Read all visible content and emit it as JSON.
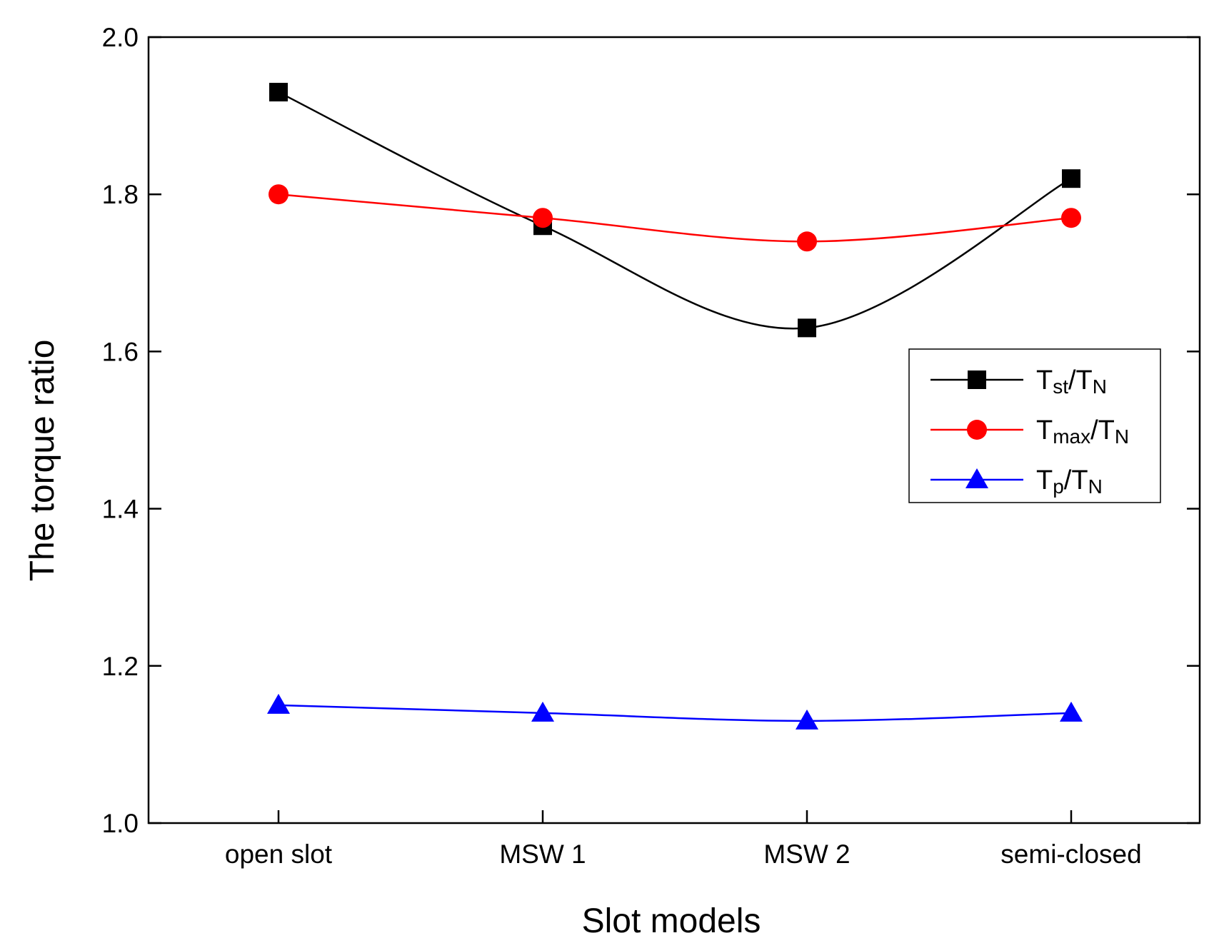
{
  "chart_data": {
    "type": "line",
    "title": "",
    "xlabel": "Slot models",
    "ylabel": "The torque ratio",
    "categories": [
      "open slot",
      "MSW 1",
      "MSW 2",
      "semi-closed"
    ],
    "ylim": [
      1.0,
      2.0
    ],
    "yticks": [
      "1.0",
      "1.2",
      "1.4",
      "1.6",
      "1.8",
      "2.0"
    ],
    "ytick_values": [
      1.0,
      1.2,
      1.4,
      1.6,
      1.8,
      2.0
    ],
    "grid": false,
    "legend_position": "right",
    "series": [
      {
        "name": "Tst/TN",
        "label_main": "T",
        "label_sub1": "st",
        "label_mid": "/T",
        "label_sub2": "N",
        "color": "#000000",
        "marker": "square",
        "values": [
          1.93,
          1.76,
          1.63,
          1.82
        ]
      },
      {
        "name": "Tmax/TN",
        "label_main": "T",
        "label_sub1": "max",
        "label_mid": "/T",
        "label_sub2": "N",
        "color": "#ff0000",
        "marker": "circle",
        "values": [
          1.8,
          1.77,
          1.74,
          1.77
        ]
      },
      {
        "name": "Tp/TN",
        "label_main": "T",
        "label_sub1": "p",
        "label_mid": "/T",
        "label_sub2": "N",
        "color": "#0000ff",
        "marker": "triangle",
        "values": [
          1.15,
          1.14,
          1.13,
          1.14
        ]
      }
    ]
  }
}
